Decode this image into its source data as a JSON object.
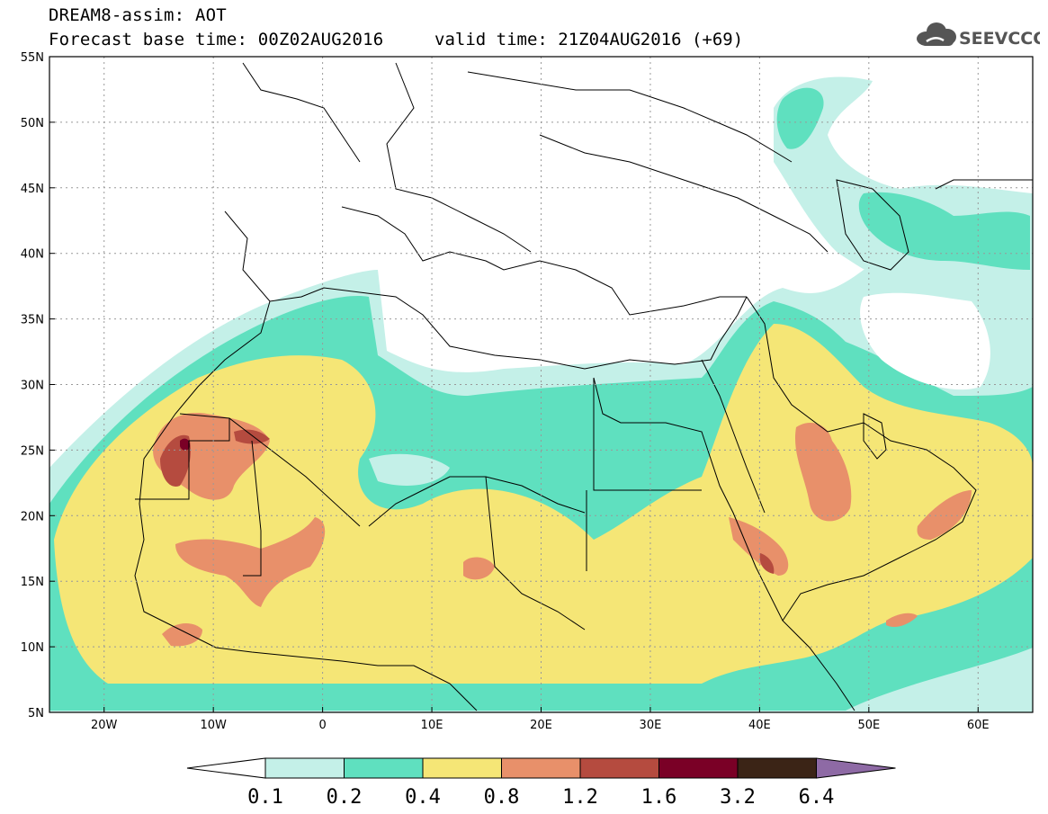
{
  "title": {
    "line1": "DREAM8-assim: AOT",
    "base_time": "Forecast base time: 00Z02AUG2016",
    "valid_time": "valid time: 21Z04AUG2016 (+69)"
  },
  "logo": {
    "text": "SEEVCCC",
    "icon": "cloud-icon"
  },
  "map": {
    "lon_range": [
      -25,
      65
    ],
    "lat_range": [
      5,
      55
    ],
    "lat_ticks": [
      {
        "v": 55,
        "label": "55N"
      },
      {
        "v": 50,
        "label": "50N"
      },
      {
        "v": 45,
        "label": "45N"
      },
      {
        "v": 40,
        "label": "40N"
      },
      {
        "v": 35,
        "label": "35N"
      },
      {
        "v": 30,
        "label": "30N"
      },
      {
        "v": 25,
        "label": "25N"
      },
      {
        "v": 20,
        "label": "20N"
      },
      {
        "v": 15,
        "label": "15N"
      },
      {
        "v": 10,
        "label": "10N"
      },
      {
        "v": 5,
        "label": "5N"
      }
    ],
    "lon_ticks": [
      {
        "v": -20,
        "label": "20W"
      },
      {
        "v": -10,
        "label": "10W"
      },
      {
        "v": 0,
        "label": "0"
      },
      {
        "v": 10,
        "label": "10E"
      },
      {
        "v": 20,
        "label": "20E"
      },
      {
        "v": 30,
        "label": "30E"
      },
      {
        "v": 40,
        "label": "40E"
      },
      {
        "v": 50,
        "label": "50E"
      },
      {
        "v": 60,
        "label": "60E"
      }
    ],
    "grid": true
  },
  "colorbar": {
    "colors": [
      "#ffffff",
      "#c4f0e8",
      "#5fe0bf",
      "#f5e676",
      "#e8906a",
      "#b54b3f",
      "#7a0026",
      "#3b2416",
      "#8e6aa5"
    ],
    "labels": [
      "0.1",
      "0.2",
      "0.4",
      "0.8",
      "1.2",
      "1.6",
      "3.2",
      "6.4"
    ]
  }
}
